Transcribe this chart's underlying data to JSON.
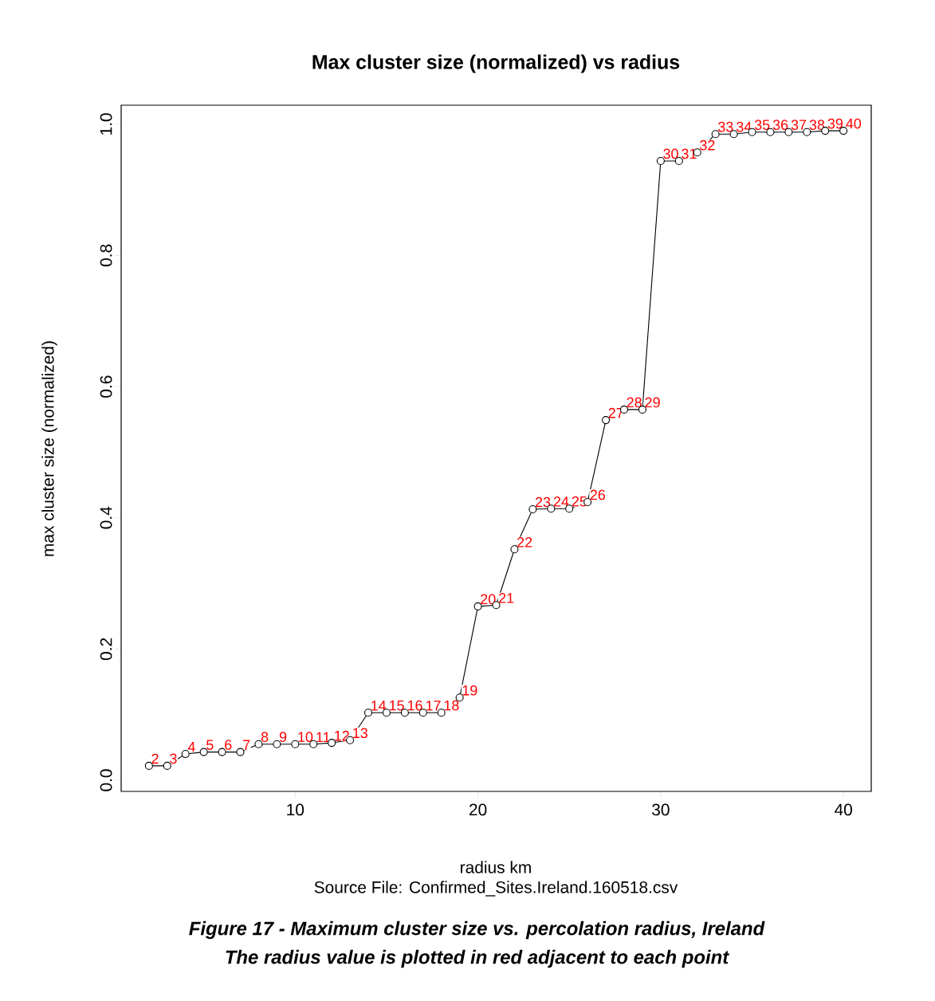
{
  "chart_data": {
    "type": "line",
    "title": "Max cluster size (normalized) vs radius",
    "xlabel": "radius km",
    "ylabel": "max cluster size (normalized)",
    "annotations": [
      "Source File:  Confirmed_Sites.Ireland.160518.csv",
      "Figure 17 - Maximum cluster size vs. percolation radius, Ireland",
      "The radius value is plotted in red adjacent to each point",
      {
        "text": "2",
        "x": 2,
        "y": 0.022
      },
      {
        "text": "3",
        "x": 3,
        "y": 0.022
      },
      {
        "text": "4",
        "x": 4,
        "y": 0.04
      },
      {
        "text": "5",
        "x": 5,
        "y": 0.043
      },
      {
        "text": "6",
        "x": 6,
        "y": 0.043
      },
      {
        "text": "7",
        "x": 7,
        "y": 0.043
      },
      {
        "text": "8",
        "x": 8,
        "y": 0.055
      },
      {
        "text": "9",
        "x": 9,
        "y": 0.055
      },
      {
        "text": "10",
        "x": 10,
        "y": 0.055
      },
      {
        "text": "11",
        "x": 11,
        "y": 0.055
      },
      {
        "text": "12",
        "x": 12,
        "y": 0.057
      },
      {
        "text": "13",
        "x": 13,
        "y": 0.061
      },
      {
        "text": "14",
        "x": 14,
        "y": 0.103
      },
      {
        "text": "15",
        "x": 15,
        "y": 0.103
      },
      {
        "text": "16",
        "x": 16,
        "y": 0.103
      },
      {
        "text": "17",
        "x": 17,
        "y": 0.103
      },
      {
        "text": "18",
        "x": 18,
        "y": 0.103
      },
      {
        "text": "19",
        "x": 19,
        "y": 0.126
      },
      {
        "text": "20",
        "x": 20,
        "y": 0.265
      },
      {
        "text": "21",
        "x": 21,
        "y": 0.267
      },
      {
        "text": "22",
        "x": 22,
        "y": 0.352
      },
      {
        "text": "23",
        "x": 23,
        "y": 0.413
      },
      {
        "text": "24",
        "x": 24,
        "y": 0.414
      },
      {
        "text": "25",
        "x": 25,
        "y": 0.414
      },
      {
        "text": "26",
        "x": 26,
        "y": 0.424
      },
      {
        "text": "27",
        "x": 27,
        "y": 0.549
      },
      {
        "text": "28",
        "x": 28,
        "y": 0.565
      },
      {
        "text": "29",
        "x": 29,
        "y": 0.565
      },
      {
        "text": "30",
        "x": 30,
        "y": 0.944
      },
      {
        "text": "31",
        "x": 31,
        "y": 0.944
      },
      {
        "text": "32",
        "x": 32,
        "y": 0.957
      },
      {
        "text": "33",
        "x": 33,
        "y": 0.985
      },
      {
        "text": "34",
        "x": 34,
        "y": 0.985
      },
      {
        "text": "35",
        "x": 35,
        "y": 0.988
      },
      {
        "text": "36",
        "x": 36,
        "y": 0.988
      },
      {
        "text": "37",
        "x": 37,
        "y": 0.988
      },
      {
        "text": "38",
        "x": 38,
        "y": 0.988
      },
      {
        "text": "39",
        "x": 39,
        "y": 0.99
      },
      {
        "text": "40",
        "x": 40,
        "y": 0.99
      }
    ],
    "x": [
      2,
      3,
      4,
      5,
      6,
      7,
      8,
      9,
      10,
      11,
      12,
      13,
      14,
      15,
      16,
      17,
      18,
      19,
      20,
      21,
      22,
      23,
      24,
      25,
      26,
      27,
      28,
      29,
      30,
      31,
      32,
      33,
      34,
      35,
      36,
      37,
      38,
      39,
      40
    ],
    "series": [
      {
        "color": "#000000",
        "values": [
          0.022,
          0.022,
          0.04,
          0.043,
          0.043,
          0.043,
          0.055,
          0.055,
          0.055,
          0.055,
          0.057,
          0.061,
          0.103,
          0.103,
          0.103,
          0.103,
          0.103,
          0.126,
          0.265,
          0.267,
          0.352,
          0.413,
          0.414,
          0.414,
          0.424,
          0.549,
          0.565,
          0.565,
          0.944,
          0.944,
          0.957,
          0.985,
          0.985,
          0.988,
          0.988,
          0.988,
          0.988,
          0.99,
          0.99
        ]
      }
    ],
    "xlim": [
      0.48,
      41.52
    ],
    "ylim": [
      -0.017,
      1.029
    ],
    "xticks": [
      10,
      20,
      30,
      40
    ],
    "yticks": [
      {
        "value": 0,
        "label": "0.0"
      },
      {
        "value": 0.2,
        "label": "0.2"
      },
      {
        "value": 0.4,
        "label": "0.4"
      },
      {
        "value": 0.6,
        "label": "0.6"
      },
      {
        "value": 0.8,
        "label": "0.8"
      },
      {
        "value": 1.0,
        "label": "1.0"
      }
    ],
    "grid": false,
    "marker": "circle",
    "line_style": "solid"
  }
}
